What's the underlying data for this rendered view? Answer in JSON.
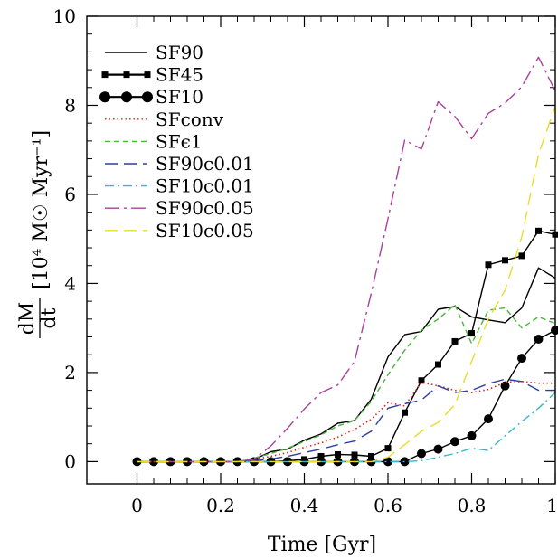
{
  "chart_data": {
    "type": "line",
    "xlabel": "Time [Gyr]",
    "ylabel_fraction_num": "dM",
    "ylabel_fraction_den": "dt",
    "ylabel_units": "[10⁴ M☉ Myr⁻¹]",
    "xlim": [
      -0.12,
      1.0
    ],
    "ylim": [
      -0.5,
      10
    ],
    "xticks": [
      0,
      0.2,
      0.4,
      0.6,
      0.8,
      1
    ],
    "xtick_labels": [
      "0",
      "0.2",
      "0.4",
      "0.6",
      "0.8",
      "1"
    ],
    "yticks": [
      0,
      2,
      4,
      6,
      8,
      10
    ],
    "ytick_labels": [
      "0",
      "2",
      "4",
      "6",
      "8",
      "10"
    ],
    "x_minor_step": 0.04,
    "y_minor_step": 0.4,
    "grid": false,
    "legend_position": "top-left",
    "series": [
      {
        "name": "SF90",
        "color": "#000000",
        "style": "solid",
        "marker": "none",
        "x": [
          0,
          0.04,
          0.08,
          0.12,
          0.16,
          0.2,
          0.24,
          0.28,
          0.32,
          0.36,
          0.4,
          0.44,
          0.48,
          0.52,
          0.56,
          0.6,
          0.64,
          0.68,
          0.72,
          0.76,
          0.8,
          0.84,
          0.88,
          0.92,
          0.96,
          1.0
        ],
        "y": [
          0,
          0,
          0,
          0,
          0,
          0,
          0,
          0.05,
          0.22,
          0.28,
          0.48,
          0.62,
          0.86,
          0.92,
          1.4,
          2.35,
          2.85,
          2.92,
          3.42,
          3.48,
          3.25,
          3.18,
          3.12,
          3.45,
          4.35,
          4.12
        ]
      },
      {
        "name": "SF45",
        "color": "#000000",
        "style": "solid",
        "marker": "square",
        "x": [
          0,
          0.04,
          0.08,
          0.12,
          0.16,
          0.2,
          0.24,
          0.28,
          0.32,
          0.36,
          0.4,
          0.44,
          0.48,
          0.52,
          0.56,
          0.6,
          0.64,
          0.68,
          0.72,
          0.76,
          0.8,
          0.84,
          0.88,
          0.92,
          0.96,
          1.0
        ],
        "y": [
          0,
          0,
          0,
          0,
          0,
          0,
          0,
          0,
          0,
          0.02,
          0.05,
          0.12,
          0.16,
          0.15,
          0.12,
          0.3,
          1.1,
          1.82,
          2.18,
          2.7,
          2.88,
          4.42,
          4.52,
          4.62,
          5.18,
          5.1
        ]
      },
      {
        "name": "SF10",
        "color": "#000000",
        "style": "solid",
        "marker": "circle",
        "x": [
          0,
          0.04,
          0.08,
          0.12,
          0.16,
          0.2,
          0.24,
          0.28,
          0.32,
          0.36,
          0.4,
          0.44,
          0.48,
          0.52,
          0.56,
          0.6,
          0.64,
          0.68,
          0.72,
          0.76,
          0.8,
          0.84,
          0.88,
          0.92,
          0.96,
          1.0
        ],
        "y": [
          0,
          0,
          0,
          0,
          0,
          0,
          0,
          0,
          0,
          0,
          0,
          0,
          0,
          0,
          0,
          0,
          0,
          0.18,
          0.28,
          0.45,
          0.58,
          0.96,
          1.7,
          2.32,
          2.75,
          2.95
        ]
      },
      {
        "name": "SFconv",
        "color": "#e0201e",
        "style": "dotted",
        "marker": "none",
        "x": [
          0,
          0.04,
          0.08,
          0.12,
          0.16,
          0.2,
          0.24,
          0.28,
          0.32,
          0.36,
          0.4,
          0.44,
          0.48,
          0.52,
          0.56,
          0.6,
          0.64,
          0.68,
          0.72,
          0.76,
          0.8,
          0.84,
          0.88,
          0.92,
          0.96,
          1.0
        ],
        "y": [
          0,
          0,
          0,
          0,
          0,
          0,
          0,
          0.05,
          0.12,
          0.2,
          0.32,
          0.42,
          0.55,
          0.72,
          0.95,
          1.32,
          1.25,
          1.78,
          1.7,
          1.6,
          1.55,
          1.62,
          1.78,
          1.8,
          1.76,
          1.76
        ]
      },
      {
        "name": "SFϵ1",
        "color": "#4cb53c",
        "style": "dashed",
        "marker": "none",
        "x": [
          0,
          0.04,
          0.08,
          0.12,
          0.16,
          0.2,
          0.24,
          0.28,
          0.32,
          0.36,
          0.4,
          0.44,
          0.48,
          0.52,
          0.56,
          0.6,
          0.64,
          0.68,
          0.72,
          0.76,
          0.8,
          0.84,
          0.88,
          0.92,
          0.96,
          1.0
        ],
        "y": [
          0,
          0,
          0,
          0,
          0,
          0,
          0,
          0.08,
          0.18,
          0.3,
          0.45,
          0.6,
          0.8,
          0.92,
          1.35,
          1.95,
          2.5,
          2.95,
          3.2,
          3.52,
          2.65,
          3.4,
          3.45,
          3.0,
          3.25,
          3.1
        ]
      },
      {
        "name": "SF90c0.01",
        "color": "#2c3f9e",
        "style": "longdash",
        "marker": "none",
        "x": [
          0,
          0.04,
          0.08,
          0.12,
          0.16,
          0.2,
          0.24,
          0.28,
          0.32,
          0.36,
          0.4,
          0.44,
          0.48,
          0.52,
          0.56,
          0.6,
          0.64,
          0.68,
          0.72,
          0.76,
          0.8,
          0.84,
          0.88,
          0.92,
          0.96,
          1.0
        ],
        "y": [
          0,
          0,
          0,
          0,
          0,
          0,
          0,
          0.02,
          0.06,
          0.12,
          0.2,
          0.28,
          0.38,
          0.46,
          0.68,
          1.2,
          1.3,
          1.38,
          1.7,
          1.55,
          1.6,
          1.75,
          1.85,
          1.8,
          1.6,
          1.6
        ]
      },
      {
        "name": "SF10c0.01",
        "color": "#3bb6c8",
        "style": "dashdot",
        "marker": "none",
        "x": [
          0,
          0.04,
          0.08,
          0.12,
          0.16,
          0.2,
          0.24,
          0.28,
          0.32,
          0.36,
          0.4,
          0.44,
          0.48,
          0.52,
          0.56,
          0.6,
          0.64,
          0.68,
          0.72,
          0.76,
          0.8,
          0.84,
          0.88,
          0.92,
          0.96,
          1.0
        ],
        "y": [
          0,
          0,
          0,
          0,
          0,
          0,
          0,
          0,
          0,
          0,
          0,
          0,
          0,
          0,
          0,
          0,
          0,
          0.02,
          0.1,
          0.18,
          0.3,
          0.25,
          0.58,
          0.9,
          1.2,
          1.55
        ]
      },
      {
        "name": "SF90c0.05",
        "color": "#a8409c",
        "style": "longdashdot",
        "marker": "none",
        "x": [
          0,
          0.04,
          0.08,
          0.12,
          0.16,
          0.2,
          0.24,
          0.28,
          0.32,
          0.36,
          0.4,
          0.44,
          0.48,
          0.52,
          0.56,
          0.6,
          0.64,
          0.68,
          0.72,
          0.76,
          0.8,
          0.84,
          0.88,
          0.92,
          0.96,
          1.0
        ],
        "y": [
          0,
          0,
          0,
          0,
          0,
          0,
          0,
          0.05,
          0.35,
          0.75,
          1.18,
          1.55,
          1.72,
          2.25,
          3.78,
          5.45,
          7.22,
          7.02,
          8.08,
          7.75,
          7.25,
          7.82,
          8.05,
          8.42,
          9.08,
          8.32
        ]
      },
      {
        "name": "SF10c0.05",
        "color": "#e8dc2a",
        "style": "longdash",
        "marker": "none",
        "x": [
          0,
          0.04,
          0.08,
          0.12,
          0.16,
          0.2,
          0.24,
          0.28,
          0.32,
          0.36,
          0.4,
          0.44,
          0.48,
          0.52,
          0.56,
          0.6,
          0.64,
          0.68,
          0.72,
          0.76,
          0.8,
          0.84,
          0.88,
          0.92,
          0.96,
          1.0
        ],
        "y": [
          0,
          0,
          0,
          0,
          0,
          0,
          0,
          0,
          0,
          0,
          0,
          0,
          0,
          0,
          0,
          0.1,
          0.38,
          0.68,
          0.88,
          1.28,
          2.25,
          3.2,
          3.85,
          5.05,
          6.9,
          7.98
        ]
      }
    ]
  }
}
